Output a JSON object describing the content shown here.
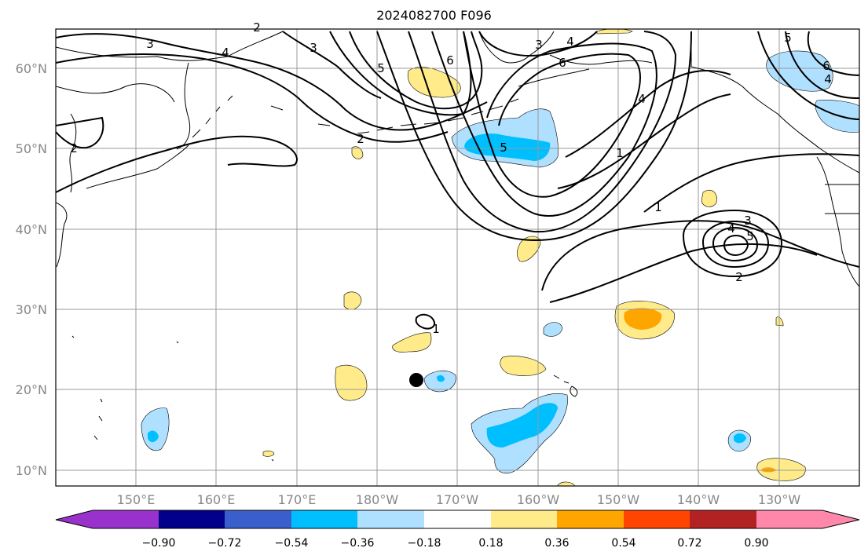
{
  "title": "2024082700 F096",
  "map": {
    "lat_labels": [
      "60°N",
      "50°N",
      "40°N",
      "30°N",
      "20°N",
      "10°N"
    ],
    "lon_labels": [
      "150°E",
      "160°E",
      "170°E",
      "180°W",
      "170°W",
      "160°W",
      "150°W",
      "140°W",
      "130°W"
    ],
    "contour_labels": [
      "3",
      "4",
      "3",
      "6",
      "3",
      "4",
      "6",
      "5",
      "5",
      "2",
      "2",
      "1",
      "5",
      "6",
      "4",
      "4",
      "1",
      "1",
      "3",
      "4",
      "5",
      "2",
      "2"
    ]
  },
  "colorbar": {
    "tick_labels": [
      "−0.90",
      "−0.72",
      "−0.54",
      "−0.36",
      "−0.18",
      "0.18",
      "0.36",
      "0.54",
      "0.72",
      "0.90"
    ],
    "colors": [
      "#9932cc",
      "#00008b",
      "#3a5fcd",
      "#00bfff",
      "#b0e0ff",
      "#ffffff",
      "#ffeb8a",
      "#ffa500",
      "#ff4500",
      "#b22222",
      "#ff88aa"
    ]
  },
  "colors": {
    "light_blue": "#b0e0ff",
    "medium_blue": "#00bfff",
    "light_yellow": "#ffeb8a",
    "orange": "#ffa500"
  }
}
